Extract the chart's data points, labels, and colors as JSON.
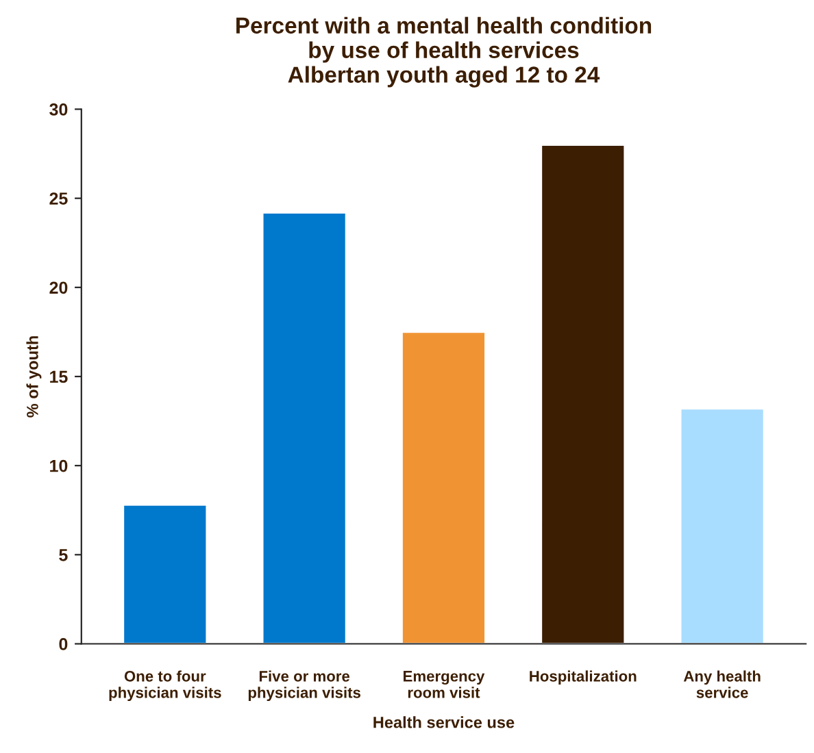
{
  "chart_data": {
    "type": "bar",
    "title": "Percent with a mental health condition\nby use of health services\nAlbertan youth aged 12 to 24",
    "xlabel": "Health service use",
    "ylabel": "% of youth",
    "categories": [
      "One to four\nphysician visits",
      "Five or more\nphysician visits",
      "Emergency\nroom visit",
      "Hospitalization",
      "Any health\nservice"
    ],
    "values": [
      7.8,
      24.2,
      17.5,
      28.0,
      13.2
    ],
    "colors": [
      "#0079cc",
      "#0079cc",
      "#f09433",
      "#3c1e03",
      "#a8ddff"
    ],
    "ylim": [
      0,
      30
    ],
    "yticks": [
      0,
      5,
      10,
      15,
      20,
      25,
      30
    ],
    "grid": false
  }
}
